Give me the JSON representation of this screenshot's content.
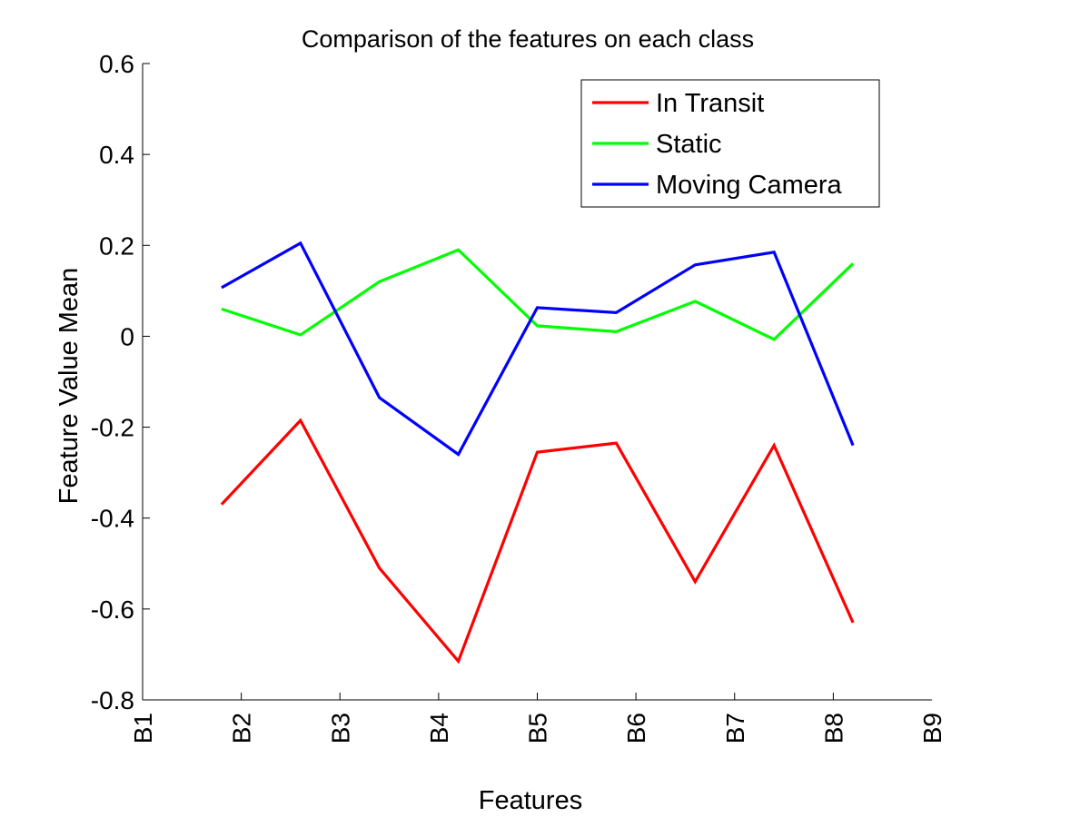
{
  "chart_data": {
    "type": "line",
    "title": "Comparison of the features on each class",
    "xlabel": "Features",
    "ylabel": "Feature Value Mean",
    "x_tick_labels": [
      "B1",
      "B2",
      "B3",
      "B4",
      "B5",
      "B6",
      "B7",
      "B8",
      "B9"
    ],
    "y_tick_labels": [
      "0.6",
      "0.4",
      "0.2",
      "0",
      "-0.2",
      "-0.4",
      "-0.6",
      "-0.8"
    ],
    "y_ticks": [
      0.6,
      0.4,
      0.2,
      0,
      -0.2,
      -0.4,
      -0.6,
      -0.8
    ],
    "ylim": [
      -0.8,
      0.6
    ],
    "xlim": [
      0,
      10
    ],
    "x_tick_positions": [
      0,
      1.25,
      2.5,
      3.75,
      5,
      6.25,
      7.5,
      8.75,
      10
    ],
    "x": [
      1,
      2,
      3,
      4,
      5,
      6,
      7,
      8,
      9
    ],
    "legend_position": "top-right",
    "grid": false,
    "series": [
      {
        "name": "In Transit",
        "color": "#ff0000",
        "values": [
          -0.37,
          -0.185,
          -0.51,
          -0.715,
          -0.255,
          -0.235,
          -0.54,
          -0.24,
          -0.63
        ]
      },
      {
        "name": "Static",
        "color": "#00ff00",
        "values": [
          0.06,
          0.003,
          0.12,
          0.19,
          0.023,
          0.01,
          0.077,
          -0.007,
          0.16
        ]
      },
      {
        "name": "Moving Camera",
        "color": "#0000ff",
        "values": [
          0.107,
          0.205,
          -0.135,
          -0.26,
          0.063,
          0.052,
          0.157,
          0.185,
          -0.24
        ]
      }
    ]
  }
}
